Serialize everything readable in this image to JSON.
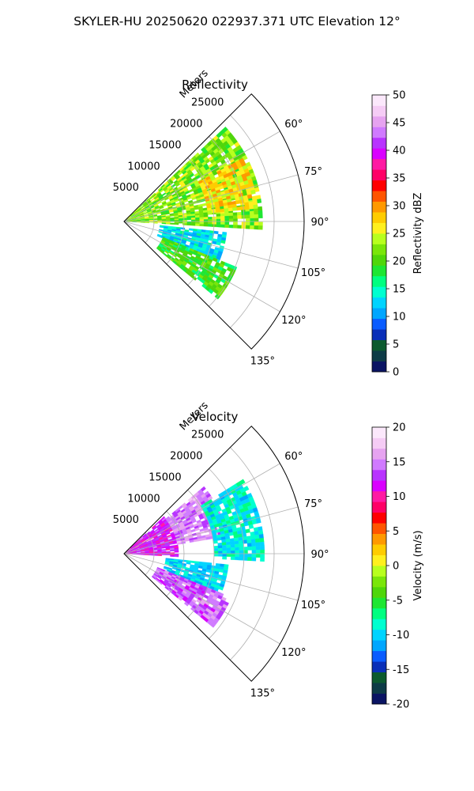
{
  "figure": {
    "title": "SKYLER-HU  20250620  022937.371 UTC Elevation 12°"
  },
  "chart_data": [
    {
      "type": "polar-sector",
      "title": "Reflectivity",
      "radial_label": "Meters",
      "radial_ticks": [
        5000,
        10000,
        15000,
        20000,
        25000
      ],
      "rlim": [
        0,
        30000
      ],
      "theta_ticks_deg": [
        60,
        75,
        90,
        105,
        120,
        135
      ],
      "theta_range_deg": [
        45,
        135
      ],
      "grid": true,
      "colorbar": {
        "label": "Reflectivity dBZ",
        "range": [
          0,
          50
        ],
        "ticks": [
          0,
          5,
          10,
          15,
          20,
          25,
          30,
          35,
          40,
          45,
          50
        ],
        "colors": [
          "#0a1463",
          "#0d3b46",
          "#0c5a2e",
          "#0a2fb8",
          "#0a5cff",
          "#00a6ff",
          "#00d4ff",
          "#00ffd0",
          "#00ff80",
          "#1ee632",
          "#4fd60a",
          "#7ae60a",
          "#b8ff1e",
          "#fff01e",
          "#ffcc00",
          "#ff9900",
          "#ff5500",
          "#ff0000",
          "#ff0066",
          "#ff1aa3",
          "#d900ff",
          "#b833ff",
          "#d07aff",
          "#e6a3f0",
          "#f5ccf5",
          "#fbe8fb"
        ]
      },
      "echo_regions": [
        {
          "az_range": [
            47,
            92
          ],
          "range_m": [
            0,
            23000
          ],
          "value_range": [
            18,
            26
          ]
        },
        {
          "az_range": [
            62,
            84
          ],
          "range_m": [
            14000,
            22000
          ],
          "value_range": [
            24,
            30
          ]
        },
        {
          "az_range": [
            96,
            112
          ],
          "range_m": [
            6000,
            17000
          ],
          "value_range": [
            10,
            16
          ]
        },
        {
          "az_range": [
            112,
            128
          ],
          "range_m": [
            7000,
            20000
          ],
          "value_range": [
            16,
            22
          ]
        }
      ]
    },
    {
      "type": "polar-sector",
      "title": "Velocity",
      "radial_label": "Meters",
      "radial_ticks": [
        5000,
        10000,
        15000,
        20000,
        25000
      ],
      "rlim": [
        0,
        30000
      ],
      "theta_ticks_deg": [
        60,
        75,
        90,
        105,
        120,
        135
      ],
      "theta_range_deg": [
        45,
        135
      ],
      "grid": true,
      "colorbar": {
        "label": "Velocity (m/s)",
        "range": [
          -20,
          20
        ],
        "ticks": [
          -20,
          -15,
          -10,
          -5,
          0,
          5,
          10,
          15,
          20
        ],
        "colors": [
          "#0a1463",
          "#0d3b46",
          "#0c5a2e",
          "#0a2fb8",
          "#0a5cff",
          "#00a6ff",
          "#00d4ff",
          "#00ffd0",
          "#00ff80",
          "#1ee632",
          "#4fd60a",
          "#7ae60a",
          "#b8ff1e",
          "#fff01e",
          "#ffcc00",
          "#ff9900",
          "#ff5500",
          "#ff0000",
          "#ff0066",
          "#ff1aa3",
          "#d900ff",
          "#b833ff",
          "#d07aff",
          "#e6a3f0",
          "#f5ccf5",
          "#fbe8fb"
        ]
      },
      "echo_regions": [
        {
          "az_range": [
            47,
            92
          ],
          "range_m": [
            0,
            9000
          ],
          "value_range": [
            10,
            14
          ]
        },
        {
          "az_range": [
            50,
            80
          ],
          "range_m": [
            9000,
            17000
          ],
          "value_range": [
            13,
            17
          ]
        },
        {
          "az_range": [
            58,
            92
          ],
          "range_m": [
            15000,
            23000
          ],
          "value_range": [
            -11,
            -7
          ]
        },
        {
          "az_range": [
            96,
            112
          ],
          "range_m": [
            7000,
            17000
          ],
          "value_range": [
            -12,
            -8
          ]
        },
        {
          "az_range": [
            112,
            128
          ],
          "range_m": [
            6000,
            19000
          ],
          "value_range": [
            12,
            16
          ]
        }
      ]
    }
  ]
}
